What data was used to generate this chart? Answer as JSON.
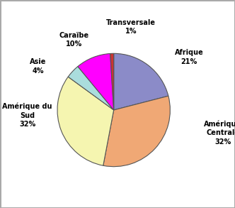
{
  "labels": [
    "Afrique",
    "Amérique\nCentrale",
    "Amérique du\nSud",
    "Asie",
    "Caraïbe",
    "Transversale"
  ],
  "values": [
    21,
    32,
    32,
    4,
    10,
    1
  ],
  "colors": [
    "#8b8bc8",
    "#f0a875",
    "#f5f5b0",
    "#aadddd",
    "#ff00ff",
    "#cc3333"
  ],
  "startangle": 90,
  "background_color": "#ffffff",
  "edge_color": "#555555",
  "figsize": [
    3.32,
    2.93
  ],
  "dpi": 100,
  "fontsize": 7,
  "border_color": "#aaaaaa"
}
